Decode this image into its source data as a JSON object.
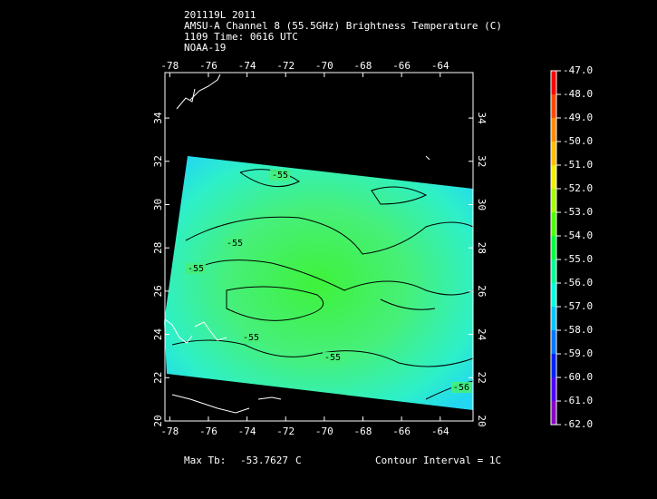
{
  "header": [
    "201119L 2011",
    "AMSU-A Channel 8 (55.5GHz) Brightness Temperature (C)",
    "1109 Time: 0616 UTC",
    "NOAA-19"
  ],
  "map": {
    "lon_ticks": [
      -78,
      -76,
      -74,
      -72,
      -70,
      -68,
      -66,
      -64
    ],
    "lat_ticks": [
      20,
      22,
      24,
      26,
      28,
      30,
      32,
      34
    ],
    "xlim": [
      -78.25,
      -62.3
    ],
    "ylim": [
      20,
      36.1
    ],
    "contour_labels": [
      -55,
      -55,
      -55,
      -55,
      -55,
      -56
    ]
  },
  "colorbar": {
    "ticks": [
      {
        "value": -47,
        "label": "-47.0"
      },
      {
        "value": -48,
        "label": "-48.0"
      },
      {
        "value": -49,
        "label": "-49.0"
      },
      {
        "value": -50,
        "label": "-50.0"
      },
      {
        "value": -51,
        "label": "-51.0"
      },
      {
        "value": -52,
        "label": "-52.0"
      },
      {
        "value": -53,
        "label": "-53.0"
      },
      {
        "value": -54,
        "label": "-54.0"
      },
      {
        "value": -55,
        "label": "-55.0"
      },
      {
        "value": -56,
        "label": "-56.0"
      },
      {
        "value": -57,
        "label": "-57.0"
      },
      {
        "value": -58,
        "label": "-58.0"
      },
      {
        "value": -59,
        "label": "-59.0"
      },
      {
        "value": -60,
        "label": "-60.0"
      },
      {
        "value": -61,
        "label": "-61.0"
      },
      {
        "value": -62,
        "label": "-62.0"
      }
    ],
    "colors": [
      "#ff0000",
      "#ff4a00",
      "#ff8c00",
      "#ffc000",
      "#f0f000",
      "#a8ff00",
      "#50ff00",
      "#00ff40",
      "#00ff98",
      "#00ffe0",
      "#00c8ff",
      "#0078ff",
      "#0020ff",
      "#5000ff",
      "#8c00c8"
    ]
  },
  "footer": {
    "max_label": "Max Tb:",
    "max_value": -53.7627,
    "unit": "C",
    "contour_interval": "Contour Interval = 1C"
  }
}
